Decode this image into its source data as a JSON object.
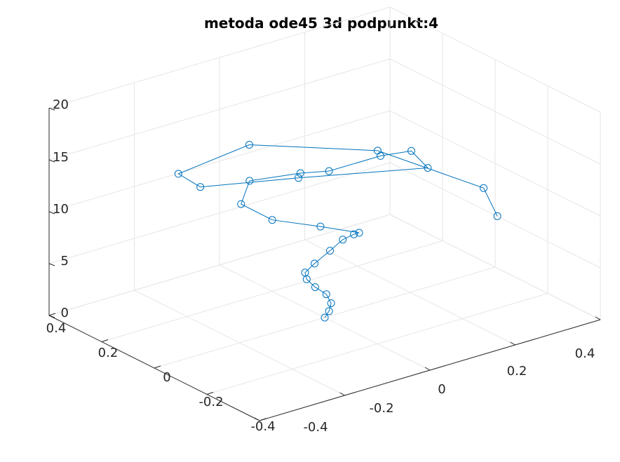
{
  "chart_data": {
    "type": "line",
    "title": "metoda ode45 3d podpunkt:4",
    "series_color": "#0072bd",
    "marker": "circle",
    "grid": true,
    "z_ticks": [
      "0",
      "5",
      "10",
      "15",
      "20"
    ],
    "x_ticks": [
      "-0.4",
      "-0.2",
      "0",
      "0.2",
      "0.4"
    ],
    "y_ticks": [
      "0.4",
      "0.2",
      "0",
      "-0.2",
      "-0.4"
    ],
    "xlim": [
      -0.4,
      0.4
    ],
    "ylim": [
      -0.4,
      0.4
    ],
    "zlim": [
      0,
      20
    ],
    "points": [
      {
        "x": 0.0,
        "y": 0.0,
        "z": 0.0
      },
      {
        "x": 0.01,
        "y": 0.0,
        "z": 0.5
      },
      {
        "x": 0.015,
        "y": 0.0,
        "z": 1.2
      },
      {
        "x": 0.01,
        "y": 0.01,
        "z": 2.0
      },
      {
        "x": -0.01,
        "y": 0.02,
        "z": 2.8
      },
      {
        "x": -0.03,
        "y": 0.02,
        "z": 3.8
      },
      {
        "x": -0.04,
        "y": 0.01,
        "z": 4.7
      },
      {
        "x": -0.03,
        "y": -0.01,
        "z": 5.7
      },
      {
        "x": 0.0,
        "y": -0.02,
        "z": 6.7
      },
      {
        "x": 0.03,
        "y": -0.02,
        "z": 7.4
      },
      {
        "x": 0.05,
        "y": -0.03,
        "z": 7.8
      },
      {
        "x": 0.05,
        "y": -0.05,
        "z": 8.2
      },
      {
        "x": -0.01,
        "y": 0.0,
        "z": 8.9
      },
      {
        "x": -0.08,
        "y": 0.07,
        "z": 9.5
      },
      {
        "x": -0.11,
        "y": 0.14,
        "z": 10.5
      },
      {
        "x": -0.09,
        "y": 0.14,
        "z": 12.5
      },
      {
        "x": -0.02,
        "y": 0.06,
        "z": 13.4
      },
      {
        "x": 0.01,
        "y": 0.0,
        "z": 14.0
      },
      {
        "x": 0.1,
        "y": -0.05,
        "z": 15.0
      },
      {
        "x": 0.16,
        "y": -0.07,
        "z": 15.0
      },
      {
        "x": 0.18,
        "y": -0.1,
        "z": 13.5
      },
      {
        "x": 0.0,
        "y": 0.1,
        "z": 12.2
      },
      {
        "x": -0.15,
        "y": 0.23,
        "z": 11.5
      },
      {
        "x": -0.22,
        "y": 0.2,
        "z": 14.0
      },
      {
        "x": -0.14,
        "y": 0.06,
        "z": 17.6
      },
      {
        "x": 0.05,
        "y": -0.12,
        "z": 17.0
      },
      {
        "x": 0.2,
        "y": -0.28,
        "z": 13.6
      },
      {
        "x": 0.22,
        "y": -0.3,
        "z": 10.9
      }
    ]
  }
}
